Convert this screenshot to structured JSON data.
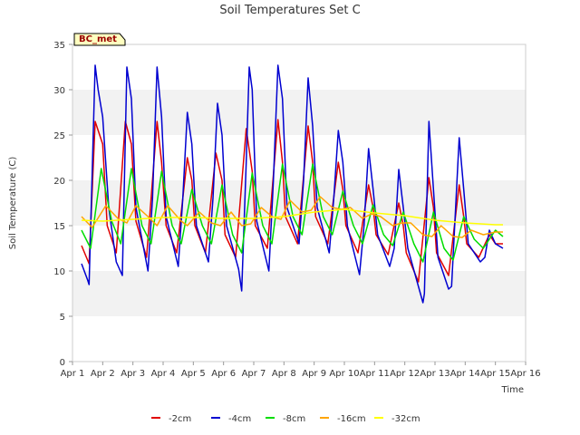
{
  "chart_data": {
    "type": "line",
    "title": "Soil Temperatures Set C",
    "xlabel": "Time",
    "ylabel": "Soil Temperature (C)",
    "ylim": [
      0,
      35
    ],
    "yticks": [
      0,
      5,
      10,
      15,
      20,
      25,
      30,
      35
    ],
    "xlim": [
      1,
      16
    ],
    "xticks": [
      1,
      2,
      3,
      4,
      5,
      6,
      7,
      8,
      9,
      10,
      11,
      12,
      13,
      14,
      15,
      16
    ],
    "xtick_labels": [
      "Apr 1",
      "Apr 2",
      "Apr 3",
      "Apr 4",
      "Apr 5",
      "Apr 6",
      "Apr 7",
      "Apr 8",
      "Apr 9",
      "Apr 10",
      "Apr 11",
      "Apr 12",
      "Apr 13",
      "Apr 14",
      "Apr 15",
      "Apr 16"
    ],
    "grid": "horizontal bands",
    "legend_position": "bottom",
    "annotation": "BC_met",
    "series": [
      {
        "name": "-2cm",
        "color": "#e00000",
        "x": [
          1.3,
          1.55,
          1.75,
          2.0,
          2.15,
          2.45,
          2.75,
          2.95,
          3.1,
          3.45,
          3.8,
          3.95,
          4.1,
          4.45,
          4.8,
          4.95,
          5.05,
          5.4,
          5.75,
          5.95,
          6.05,
          6.4,
          6.75,
          6.95,
          7.05,
          7.45,
          7.8,
          7.95,
          8.05,
          8.45,
          8.8,
          8.95,
          9.05,
          9.45,
          9.8,
          9.95,
          10.05,
          10.45,
          10.8,
          10.95,
          11.05,
          11.45,
          11.8,
          11.95,
          12.05,
          12.45,
          12.8,
          12.95,
          13.05,
          13.45,
          13.8,
          13.95,
          14.05,
          14.45,
          14.8,
          15.0,
          15.25
        ],
        "y": [
          12.8,
          10.8,
          26.5,
          24.0,
          15.0,
          12.0,
          26.5,
          24.0,
          15.5,
          11.5,
          26.5,
          22.0,
          15.0,
          12.0,
          22.5,
          20.0,
          15.0,
          12.0,
          23.0,
          20.0,
          14.0,
          11.5,
          25.7,
          21.0,
          15.0,
          12.5,
          26.7,
          22.0,
          16.0,
          13.0,
          26.0,
          22.0,
          16.0,
          13.0,
          22.0,
          19.0,
          15.0,
          12.0,
          19.5,
          17.0,
          14.0,
          11.8,
          17.5,
          15.0,
          12.0,
          8.8,
          20.3,
          17.0,
          12.0,
          9.5,
          19.5,
          16.0,
          13.0,
          11.5,
          14.0,
          13.0,
          13.0
        ]
      },
      {
        "name": "-4cm",
        "color": "#0000d0",
        "x": [
          1.3,
          1.5,
          1.55,
          1.75,
          1.85,
          2.0,
          2.2,
          2.45,
          2.65,
          2.8,
          2.95,
          3.1,
          3.5,
          3.65,
          3.8,
          3.95,
          4.1,
          4.5,
          4.65,
          4.8,
          4.95,
          5.1,
          5.5,
          5.65,
          5.8,
          5.95,
          6.1,
          6.5,
          6.6,
          6.75,
          6.85,
          6.95,
          7.1,
          7.5,
          7.65,
          7.8,
          7.95,
          8.1,
          8.5,
          8.65,
          8.8,
          8.95,
          9.1,
          9.5,
          9.65,
          9.8,
          9.95,
          10.1,
          10.5,
          10.65,
          10.8,
          10.95,
          11.1,
          11.5,
          11.65,
          11.8,
          11.95,
          12.1,
          12.6,
          12.65,
          12.8,
          12.95,
          13.1,
          13.45,
          13.55,
          13.8,
          13.95,
          14.1,
          14.5,
          14.65,
          14.8,
          15.0,
          15.25
        ],
        "y": [
          10.8,
          9.0,
          8.5,
          32.7,
          30.0,
          27.0,
          17.0,
          11.0,
          9.5,
          32.5,
          29.0,
          17.0,
          10.0,
          18.0,
          32.5,
          27.0,
          16.0,
          10.5,
          18.0,
          27.5,
          24.0,
          15.0,
          11.0,
          18.0,
          28.5,
          25.0,
          15.0,
          10.2,
          7.8,
          22.0,
          32.5,
          30.0,
          15.5,
          10.0,
          20.0,
          32.7,
          29.0,
          17.0,
          13.0,
          20.0,
          31.3,
          26.0,
          17.0,
          12.0,
          18.0,
          25.5,
          22.0,
          15.0,
          9.6,
          15.0,
          23.5,
          19.0,
          14.0,
          10.5,
          12.5,
          21.2,
          17.0,
          12.5,
          6.5,
          7.5,
          26.5,
          19.0,
          11.5,
          8.0,
          8.3,
          24.7,
          19.0,
          13.0,
          11.0,
          11.5,
          14.5,
          13.0,
          12.5
        ]
      },
      {
        "name": "-8cm",
        "color": "#00dd00",
        "x": [
          1.3,
          1.6,
          1.95,
          2.3,
          2.6,
          2.95,
          3.3,
          3.6,
          3.95,
          4.3,
          4.6,
          4.95,
          5.3,
          5.6,
          5.95,
          6.3,
          6.6,
          6.95,
          7.3,
          7.6,
          7.95,
          8.3,
          8.6,
          8.95,
          9.3,
          9.6,
          9.95,
          10.3,
          10.6,
          10.95,
          11.3,
          11.6,
          11.95,
          12.3,
          12.6,
          12.95,
          13.3,
          13.6,
          13.95,
          14.3,
          14.6,
          15.0,
          15.25
        ],
        "y": [
          14.5,
          12.5,
          21.3,
          15.5,
          13.0,
          21.3,
          15.0,
          13.0,
          21.0,
          15.0,
          13.0,
          19.0,
          15.0,
          13.0,
          19.5,
          14.0,
          12.0,
          20.8,
          15.0,
          13.0,
          21.8,
          16.0,
          14.0,
          21.8,
          16.0,
          14.0,
          18.8,
          15.0,
          13.0,
          17.3,
          14.0,
          12.8,
          16.5,
          13.0,
          11.0,
          16.5,
          12.5,
          11.2,
          16.0,
          13.5,
          12.5,
          14.5,
          13.8
        ]
      },
      {
        "name": "-16cm",
        "color": "#ffa500",
        "x": [
          1.3,
          1.65,
          2.1,
          2.5,
          2.8,
          3.1,
          3.5,
          3.8,
          4.15,
          4.6,
          4.8,
          5.2,
          5.6,
          5.9,
          6.25,
          6.6,
          6.9,
          7.25,
          7.6,
          7.9,
          8.2,
          8.6,
          8.9,
          9.2,
          9.6,
          9.9,
          10.2,
          10.6,
          10.9,
          11.2,
          11.6,
          11.9,
          12.2,
          12.6,
          12.9,
          13.2,
          13.6,
          13.9,
          14.2,
          14.6,
          15.0,
          15.25
        ],
        "y": [
          16.0,
          14.8,
          17.2,
          15.8,
          15.3,
          17.2,
          16.0,
          15.0,
          17.2,
          15.5,
          15.0,
          16.5,
          15.3,
          15.0,
          16.5,
          15.0,
          15.2,
          17.0,
          16.0,
          15.7,
          17.8,
          16.5,
          16.7,
          18.2,
          17.0,
          16.8,
          17.0,
          15.8,
          16.3,
          16.0,
          15.0,
          15.3,
          15.3,
          14.0,
          13.8,
          15.0,
          13.8,
          13.7,
          14.5,
          14.0,
          14.3,
          14.3
        ]
      },
      {
        "name": "-32cm",
        "color": "#ffff00",
        "x": [
          1.3,
          2.0,
          3.0,
          4.0,
          5.0,
          6.0,
          7.0,
          8.0,
          9.0,
          10.0,
          11.0,
          12.0,
          13.0,
          14.0,
          15.0,
          15.25
        ],
        "y": [
          15.6,
          15.5,
          15.7,
          15.9,
          15.9,
          15.8,
          15.8,
          16.0,
          16.5,
          16.8,
          16.4,
          16.1,
          15.6,
          15.3,
          15.1,
          15.1
        ]
      }
    ]
  }
}
